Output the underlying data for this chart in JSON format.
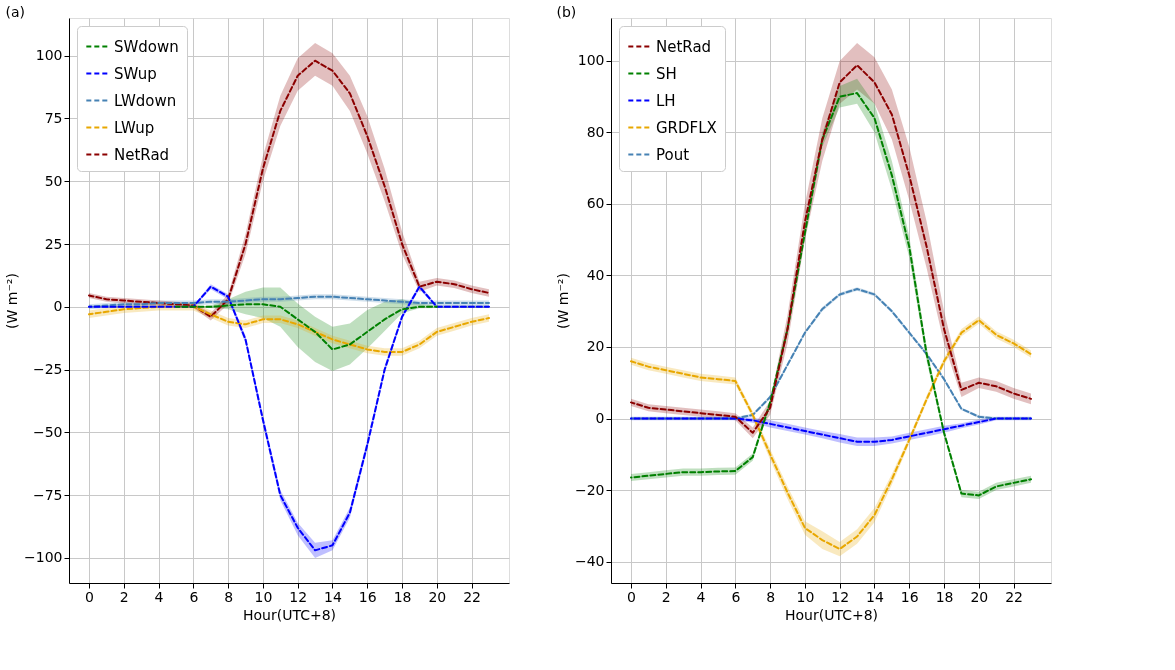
{
  "chart_data": [
    {
      "type": "line",
      "title": "(a)",
      "xlabel": "Hour(UTC+8)",
      "ylabel": "(W m⁻²)",
      "x": [
        0,
        1,
        2,
        3,
        4,
        5,
        6,
        7,
        8,
        9,
        10,
        11,
        12,
        13,
        14,
        15,
        16,
        17,
        18,
        19,
        20,
        21,
        22,
        23
      ],
      "xlim": [
        -1.15,
        24.15
      ],
      "xticks": [
        0,
        2,
        4,
        6,
        8,
        10,
        12,
        14,
        16,
        18,
        20,
        22
      ],
      "ylim": [
        -110,
        115
      ],
      "yticks": [
        -100,
        -75,
        -50,
        -25,
        0,
        25,
        50,
        75,
        100
      ],
      "grid": true,
      "legend": "top left",
      "line_style": "dashed",
      "series": [
        {
          "name": "SWdown",
          "color": "#008000",
          "values": [
            null,
            null,
            null,
            null,
            null,
            0,
            0,
            0,
            0.5,
            1,
            1,
            0,
            -5,
            -10,
            -17,
            -15,
            -10,
            -5,
            -1,
            0,
            0,
            null,
            null,
            null
          ],
          "lower": [
            0,
            0,
            0,
            0,
            0,
            0,
            0,
            -0.5,
            -1,
            -3,
            -4.5,
            -8,
            -16,
            -22,
            -25.6,
            -23,
            -16.6,
            -9.6,
            -2.6,
            -0.6,
            -0.5,
            -0.5,
            -0.5,
            -0.5
          ],
          "upper": [
            0,
            0,
            0,
            0,
            0,
            0,
            0,
            0.5,
            3,
            6,
            7.7,
            7.7,
            1.3,
            -4,
            -8,
            -6.7,
            -1.3,
            2,
            3,
            1.3,
            0.5,
            0.5,
            0.5,
            0.5
          ]
        },
        {
          "name": "SWup",
          "color": "#0000ff",
          "values": [
            0,
            0,
            0,
            0,
            0,
            0,
            0,
            8,
            4,
            -13,
            -45,
            -75,
            -88,
            -97,
            -95,
            -82,
            -55,
            -25,
            -4,
            8,
            0,
            0,
            0,
            0
          ],
          "lower": [
            -0.5,
            -0.5,
            -0.5,
            -0.5,
            -0.5,
            -0.5,
            -0.5,
            7,
            3,
            -14.5,
            -47,
            -77,
            -91,
            -100,
            -97,
            -84,
            -57,
            -26.5,
            -5,
            7,
            -0.5,
            -0.5,
            -0.5,
            -0.5
          ],
          "upper": [
            0.5,
            0.5,
            0.5,
            0.5,
            0.5,
            0.5,
            0.5,
            9,
            5,
            -11.5,
            -43,
            -73,
            -86,
            -94,
            -93,
            -80,
            -53,
            -23.5,
            -3,
            9,
            0.5,
            0.5,
            0.5,
            0.5
          ]
        },
        {
          "name": "LWdown",
          "color": "#4682b4",
          "values": [
            0,
            0.5,
            1,
            1,
            1.5,
            1.5,
            1.5,
            2,
            2,
            2.5,
            3,
            3,
            3.5,
            4,
            4,
            3.5,
            3,
            2.5,
            2,
            1.5,
            1.5,
            1.5,
            1.5,
            1.5
          ],
          "lower": [
            -1,
            -0.5,
            0,
            0,
            0.5,
            0.5,
            0.5,
            1,
            1,
            1.5,
            2,
            2,
            2.5,
            3,
            3,
            2.5,
            2,
            1.5,
            1,
            0.5,
            0.5,
            0.5,
            0.5,
            0.5
          ],
          "upper": [
            1,
            1.5,
            2,
            2,
            2.5,
            2.5,
            2.5,
            3,
            3,
            3.5,
            4,
            4,
            4.5,
            5,
            5,
            4.5,
            4,
            3.5,
            3,
            2.5,
            2.5,
            2.5,
            2.5,
            2.5
          ]
        },
        {
          "name": "LWup",
          "color": "#e8a700",
          "values": [
            -3,
            -2,
            -1,
            -0.5,
            0,
            0,
            0,
            -3,
            -6,
            -7,
            -5,
            -5,
            -7,
            -10,
            -13,
            -15,
            -17,
            -18,
            -18,
            -15,
            -10,
            -8,
            -6,
            -4.5
          ],
          "lower": [
            -4.5,
            -3.5,
            -2.5,
            -2,
            -1.5,
            -1.5,
            -1.5,
            -4.5,
            -7.5,
            -8.5,
            -6.5,
            -6.5,
            -8.5,
            -11.5,
            -14.5,
            -16.5,
            -18.5,
            -19.5,
            -19.5,
            -16.5,
            -11.5,
            -9.5,
            -7.5,
            -6
          ],
          "upper": [
            -1.5,
            -0.5,
            0.5,
            1,
            1.5,
            1.5,
            1.5,
            -1.5,
            -4.5,
            -5.5,
            -3.5,
            -3.5,
            -5.5,
            -8.5,
            -11.5,
            -13.5,
            -15.5,
            -16.5,
            -16.5,
            -13.5,
            -8.5,
            -6.5,
            -4.5,
            -3
          ]
        },
        {
          "name": "NetRad",
          "color": "#8b0000",
          "values": [
            4.5,
            3,
            2.5,
            2,
            1.5,
            1,
            0.5,
            -4,
            3,
            25,
            55,
            78,
            92,
            98,
            94,
            85,
            68,
            48,
            25,
            8,
            10,
            9,
            7,
            5.5
          ],
          "lower": [
            3.5,
            2,
            1.5,
            1,
            0.5,
            0,
            -0.5,
            -5.5,
            1,
            21,
            50,
            72,
            86,
            92,
            88,
            78,
            61,
            42,
            21,
            6,
            8.5,
            7.5,
            5.5,
            4
          ],
          "upper": [
            5.5,
            4,
            3.5,
            3,
            2.5,
            2,
            1.5,
            -2.5,
            5,
            29,
            60,
            84,
            99,
            105,
            101,
            92,
            76,
            55,
            30,
            10,
            11.5,
            10.5,
            8.5,
            7
          ]
        }
      ]
    },
    {
      "type": "line",
      "title": "(b)",
      "xlabel": "Hour(UTC+8)",
      "ylabel": "(W m⁻²)",
      "x": [
        0,
        1,
        2,
        3,
        4,
        5,
        6,
        7,
        8,
        9,
        10,
        11,
        12,
        13,
        14,
        15,
        16,
        17,
        18,
        19,
        20,
        21,
        22,
        23
      ],
      "xlim": [
        -1.15,
        24.15
      ],
      "xticks": [
        0,
        2,
        4,
        6,
        8,
        10,
        12,
        14,
        16,
        18,
        20,
        22
      ],
      "ylim": [
        -46,
        112
      ],
      "yticks": [
        -40,
        -20,
        0,
        20,
        40,
        60,
        80,
        100
      ],
      "grid": true,
      "legend": "top left",
      "line_style": "dashed",
      "series": [
        {
          "name": "NetRad",
          "color": "#8b0000",
          "values": [
            4.5,
            3,
            2.5,
            2,
            1.5,
            1,
            0.5,
            -4,
            3,
            25,
            55,
            78,
            94,
            98.8,
            94,
            85,
            68,
            48,
            25,
            8,
            10,
            9,
            7,
            5.5
          ],
          "lower": [
            3.5,
            2,
            1.5,
            1,
            0.5,
            0,
            -0.5,
            -5.5,
            1,
            21,
            50,
            72,
            88,
            92,
            88,
            78,
            61,
            42,
            21,
            6,
            8.5,
            7.5,
            5.5,
            4
          ],
          "upper": [
            5.5,
            4,
            3.5,
            3,
            2.5,
            2,
            1.5,
            -2.5,
            5,
            29,
            60,
            84,
            100,
            105,
            101,
            92,
            76,
            55,
            30,
            10,
            11.5,
            10.5,
            8.5,
            7
          ]
        },
        {
          "name": "SH",
          "color": "#008000",
          "values": [
            -16.5,
            -16,
            -15.5,
            -15,
            -15,
            -14.8,
            -14.7,
            -10.8,
            4.5,
            25,
            52,
            78,
            90,
            91,
            84,
            68,
            48,
            18,
            -4,
            -21,
            -21.5,
            -19,
            -18,
            -17
          ],
          "lower": [
            -17.5,
            -17,
            -16.5,
            -16,
            -16,
            -15.8,
            -15.7,
            -11.8,
            3.5,
            23.5,
            50,
            76,
            87,
            88,
            80,
            64,
            45,
            16,
            -5,
            -22,
            -22.5,
            -20,
            -19,
            -18
          ],
          "upper": [
            -15.5,
            -15,
            -14.5,
            -14,
            -14,
            -13.8,
            -13.7,
            -9.8,
            5.5,
            26.5,
            54,
            80,
            93,
            95,
            88,
            72,
            51,
            20,
            -3,
            -20,
            -20.5,
            -18,
            -17,
            -16
          ]
        },
        {
          "name": "LH",
          "color": "#0000ff",
          "values": [
            0,
            0,
            0,
            0,
            0,
            0,
            0,
            -0.5,
            -1.5,
            -2.5,
            -3.5,
            -4.5,
            -5.5,
            -6.5,
            -6.5,
            -6,
            -5,
            -4,
            -3,
            -2,
            -1,
            0,
            0,
            0
          ],
          "lower": [
            -0.5,
            -0.5,
            -0.5,
            -0.5,
            -0.5,
            -0.5,
            -0.5,
            -1.2,
            -2.5,
            -3.5,
            -4.5,
            -5.5,
            -6.7,
            -7.7,
            -7.7,
            -7,
            -6,
            -5,
            -4,
            -2.7,
            -1.7,
            -0.5,
            -0.5,
            -0.5
          ],
          "upper": [
            0.5,
            0.5,
            0.5,
            0.5,
            0.5,
            0.5,
            0.5,
            0.2,
            -0.5,
            -1.5,
            -2.5,
            -3.5,
            -4.3,
            -5.3,
            -5.3,
            -5,
            -4,
            -3,
            -2,
            -1.3,
            -0.3,
            0.5,
            0.5,
            0.5
          ]
        },
        {
          "name": "GRDFLX",
          "color": "#e8a700",
          "values": [
            16,
            14.5,
            13.5,
            12.5,
            11.5,
            11,
            10.5,
            1,
            -10,
            -20.7,
            -30.6,
            -34,
            -36.5,
            -33,
            -27,
            -17,
            -6,
            5.4,
            16,
            24,
            27.5,
            23.4,
            21,
            18
          ],
          "lower": [
            15,
            13.5,
            12.5,
            11.5,
            10.5,
            10,
            9.5,
            0,
            -11.5,
            -22.5,
            -32.5,
            -36.5,
            -38.5,
            -35,
            -29,
            -18.5,
            -7,
            4.4,
            15,
            23,
            26.5,
            22.4,
            20,
            17
          ],
          "upper": [
            17,
            15.5,
            14.5,
            13.5,
            12.5,
            12,
            11.5,
            2,
            -8.5,
            -19,
            -28.7,
            -31.5,
            -34.5,
            -31,
            -25,
            -15.5,
            -5,
            6.4,
            17,
            25,
            28.5,
            24.4,
            22,
            19
          ]
        },
        {
          "name": "Pout",
          "color": "#4682b4",
          "values": [
            0,
            0,
            0,
            0,
            0,
            0,
            0,
            1,
            6,
            15,
            24,
            30.6,
            34.7,
            36.2,
            34.7,
            30,
            24,
            18,
            11,
            2.7,
            0.5,
            0,
            0,
            0
          ],
          "lower": [
            -0.4,
            -0.4,
            -0.4,
            -0.4,
            -0.4,
            -0.4,
            -0.4,
            0.6,
            5.5,
            14.5,
            23.5,
            30,
            34.2,
            35.7,
            34.2,
            29.5,
            23.5,
            17.5,
            10.5,
            2.3,
            0.1,
            -0.4,
            -0.4,
            -0.4
          ],
          "upper": [
            0.4,
            0.4,
            0.4,
            0.4,
            0.4,
            0.4,
            0.4,
            1.4,
            6.5,
            15.5,
            24.5,
            31.2,
            35.2,
            36.7,
            35.2,
            30.5,
            24.5,
            18.5,
            11.5,
            3.1,
            0.9,
            0.4,
            0.4,
            0.4
          ]
        }
      ]
    }
  ]
}
